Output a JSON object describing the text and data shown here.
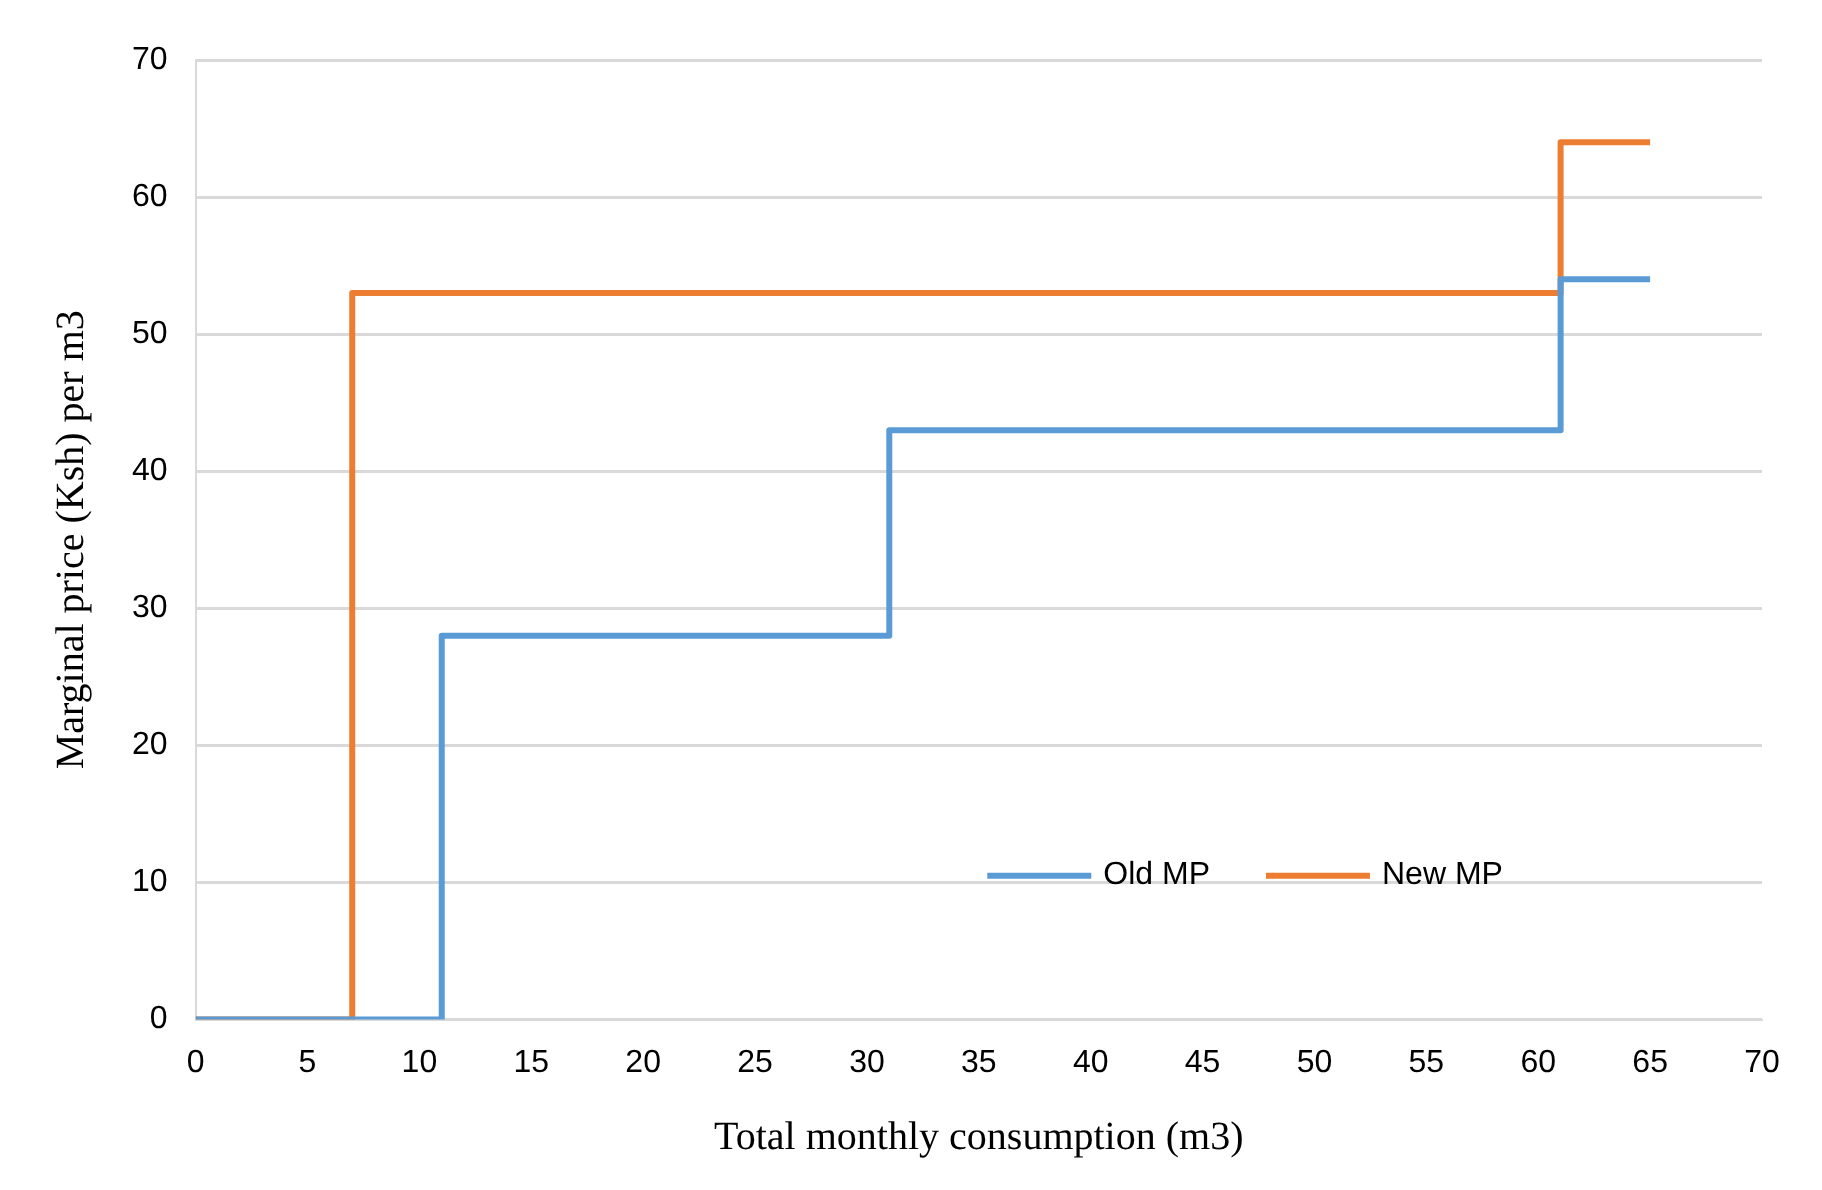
{
  "chart_data": {
    "type": "step",
    "xlabel": "Total monthly consumption (m3)",
    "ylabel": "Marginal price (Ksh) per m3",
    "series": [
      {
        "name": "Old MP",
        "color": "#5b9bd5",
        "x": [
          0,
          11,
          31,
          61,
          65
        ],
        "values": [
          0,
          28,
          43,
          54,
          54
        ]
      },
      {
        "name": "New MP",
        "color": "#ed7d31",
        "x": [
          0,
          7,
          61,
          65
        ],
        "values": [
          0,
          53,
          64,
          64
        ]
      }
    ],
    "xlim": [
      0,
      70
    ],
    "xticks": [
      0,
      5,
      10,
      15,
      20,
      25,
      30,
      35,
      40,
      45,
      50,
      55,
      60,
      65,
      70
    ],
    "ylim": [
      0,
      70
    ],
    "yticks": [
      0,
      10,
      20,
      30,
      40,
      50,
      60,
      70
    ],
    "grid": "y",
    "legend": "bottom right",
    "marker": "none",
    "line_style": "solid"
  }
}
